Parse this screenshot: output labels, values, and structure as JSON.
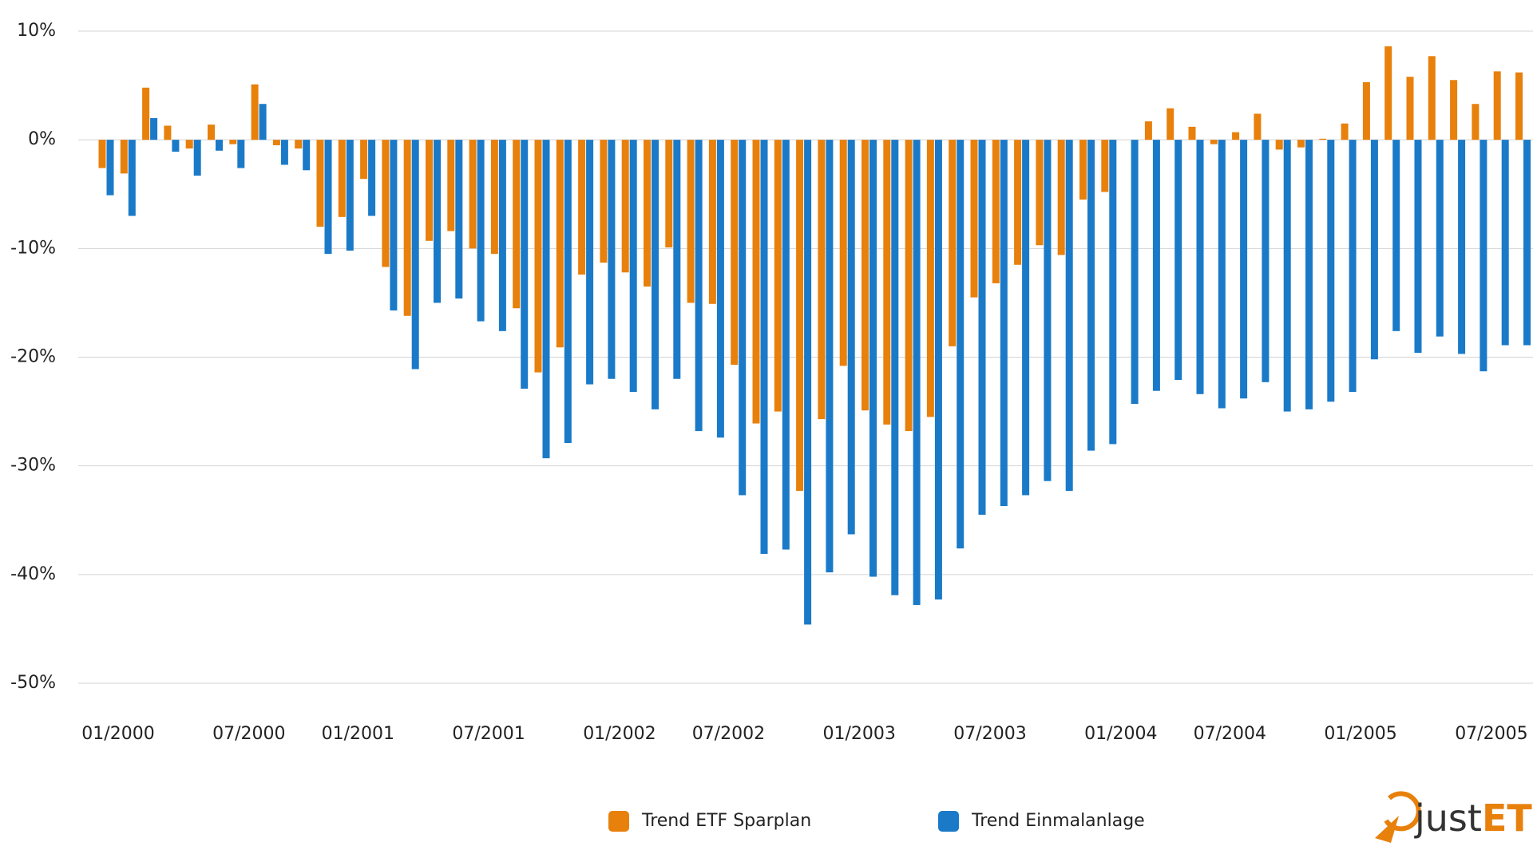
{
  "chart_data": {
    "type": "bar",
    "categories": [
      "01/2000",
      null,
      null,
      null,
      null,
      null,
      "07/2000",
      null,
      null,
      null,
      null,
      "01/2001",
      null,
      null,
      null,
      null,
      null,
      "07/2001",
      null,
      null,
      null,
      null,
      null,
      "01/2002",
      null,
      null,
      null,
      null,
      "07/2002",
      null,
      null,
      null,
      null,
      null,
      "01/2003",
      null,
      null,
      null,
      null,
      null,
      "07/2003",
      null,
      null,
      null,
      null,
      null,
      "01/2004",
      null,
      null,
      null,
      null,
      "07/2004",
      null,
      null,
      null,
      null,
      null,
      "01/2005",
      null,
      null,
      null,
      null,
      null,
      "07/2005",
      null,
      null
    ],
    "series": [
      {
        "name": "Trend ETF Sparplan",
        "color": "#e8800c",
        "values": [
          -2.6,
          -3.1,
          4.8,
          1.3,
          -0.8,
          1.4,
          -0.4,
          5.1,
          -0.5,
          -0.8,
          -8.0,
          -7.1,
          -3.6,
          -11.7,
          -16.2,
          -9.3,
          -8.4,
          -10.0,
          -10.5,
          -15.5,
          -21.4,
          -19.1,
          -12.4,
          -11.3,
          -12.2,
          -13.5,
          -9.9,
          -15.0,
          -15.1,
          -20.7,
          -26.1,
          -25.0,
          -32.3,
          -25.7,
          -20.8,
          -24.9,
          -26.2,
          -26.8,
          -25.5,
          -19.0,
          -14.5,
          -13.2,
          -11.5,
          -9.7,
          -10.6,
          -5.5,
          -4.8,
          0.0,
          1.7,
          2.9,
          1.2,
          -0.4,
          0.7,
          2.4,
          -0.9,
          -0.7,
          0.1,
          1.5,
          5.3,
          8.6,
          5.8,
          7.7,
          5.5,
          3.3,
          6.3,
          6.2
        ]
      },
      {
        "name": "Trend Einmalanlage",
        "color": "#1a7ac8",
        "values": [
          -5.1,
          -7.0,
          2.0,
          -1.1,
          -3.3,
          -1.0,
          -2.6,
          3.3,
          -2.3,
          -2.8,
          -10.5,
          -10.2,
          -7.0,
          -15.7,
          -21.1,
          -15.0,
          -14.6,
          -16.7,
          -17.6,
          -22.9,
          -29.3,
          -27.9,
          -22.5,
          -22.0,
          -23.2,
          -24.8,
          -22.0,
          -26.8,
          -27.4,
          -32.7,
          -38.1,
          -37.7,
          -44.6,
          -39.8,
          -36.3,
          -40.2,
          -41.9,
          -42.8,
          -42.3,
          -37.6,
          -34.5,
          -33.7,
          -32.7,
          -31.4,
          -32.3,
          -28.6,
          -28.0,
          -24.3,
          -23.1,
          -22.1,
          -23.4,
          -24.7,
          -23.8,
          -22.3,
          -25.0,
          -24.8,
          -24.1,
          -23.2,
          -20.2,
          -17.6,
          -19.6,
          -18.1,
          -19.7,
          -21.3,
          -18.9,
          -18.9
        ]
      }
    ],
    "ylim": [
      -50,
      10
    ],
    "yticks": [
      {
        "value": -50,
        "label": "-50%"
      },
      {
        "value": -40,
        "label": "-40%"
      },
      {
        "value": -30,
        "label": "-30%"
      },
      {
        "value": -20,
        "label": "-20%"
      },
      {
        "value": -10,
        "label": "-10%"
      },
      {
        "value": 0,
        "label": "0%"
      },
      {
        "value": 10,
        "label": "10%"
      }
    ],
    "grid": true
  },
  "logo": [
    "just",
    "ETF"
  ]
}
